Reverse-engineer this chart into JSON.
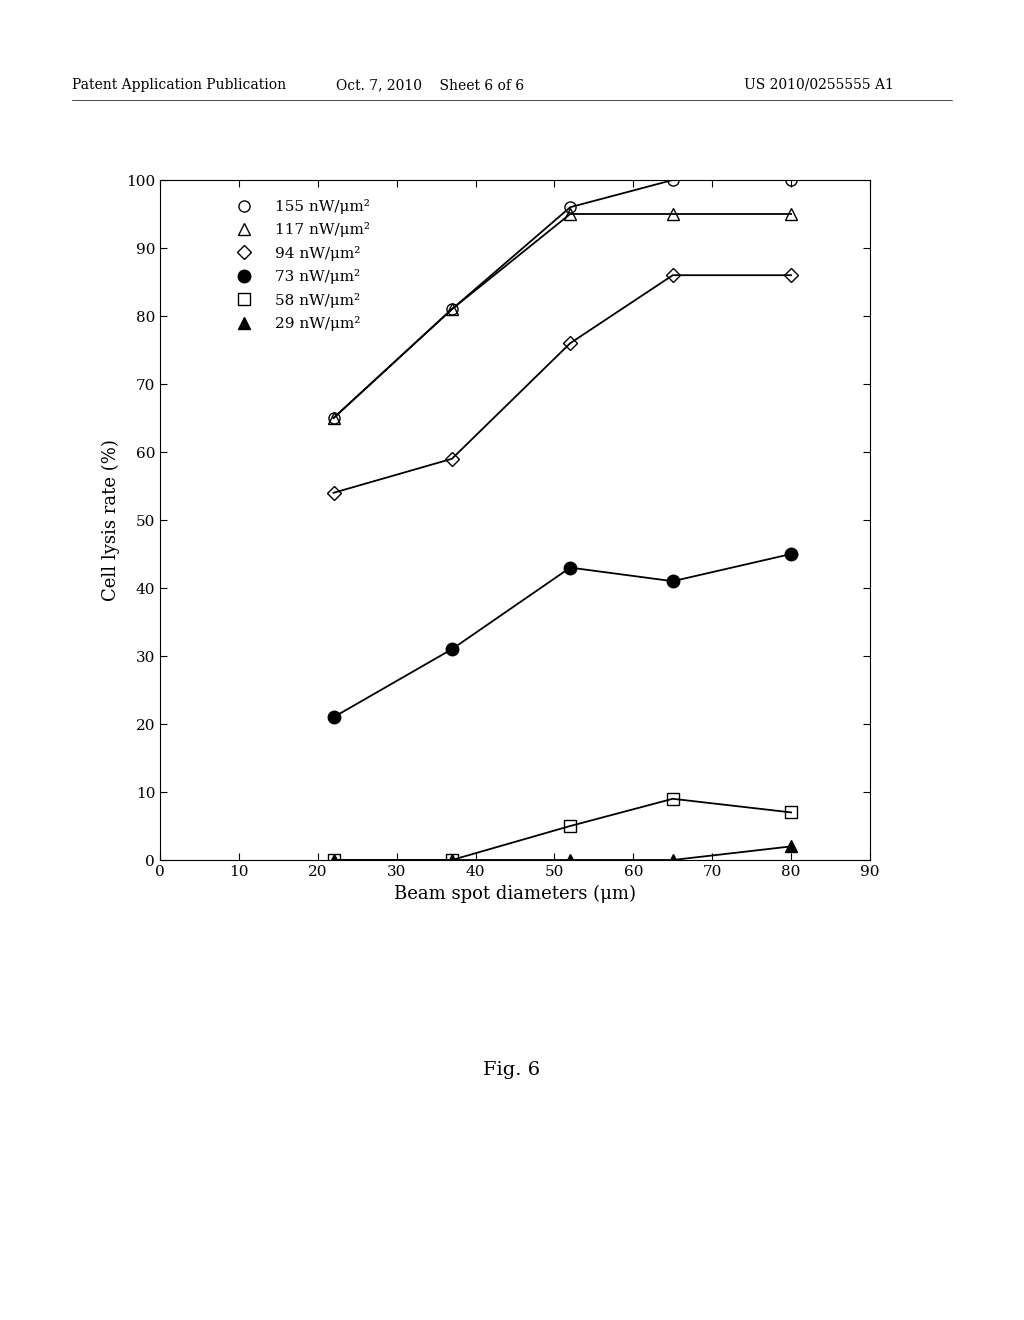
{
  "series": [
    {
      "label": "155 nW/μm²",
      "x": [
        22,
        37,
        52,
        65,
        80
      ],
      "y": [
        65,
        81,
        96,
        100,
        100
      ],
      "marker": "o",
      "fillstyle": "none",
      "color": "black",
      "markersize": 8,
      "linewidth": 1.3
    },
    {
      "label": "117 nW/μm²",
      "x": [
        22,
        37,
        52,
        65,
        80
      ],
      "y": [
        65,
        81,
        95,
        95,
        95
      ],
      "marker": "^",
      "fillstyle": "none",
      "color": "black",
      "markersize": 8,
      "linewidth": 1.3
    },
    {
      "label": "94 nW/μm²",
      "x": [
        22,
        37,
        52,
        65,
        80
      ],
      "y": [
        54,
        59,
        76,
        86,
        86
      ],
      "marker": "D",
      "fillstyle": "none",
      "color": "black",
      "markersize": 7,
      "linewidth": 1.3
    },
    {
      "label": "73 nW/μm²",
      "x": [
        22,
        37,
        52,
        65,
        80
      ],
      "y": [
        21,
        31,
        43,
        41,
        45
      ],
      "marker": "o",
      "fillstyle": "full",
      "color": "black",
      "markersize": 9,
      "linewidth": 1.3
    },
    {
      "label": "58 nW/μm²",
      "x": [
        22,
        37,
        52,
        65,
        80
      ],
      "y": [
        0,
        0,
        5,
        9,
        7
      ],
      "marker": "s",
      "fillstyle": "none",
      "color": "black",
      "markersize": 8,
      "linewidth": 1.3
    },
    {
      "label": "29 nW/μm²",
      "x": [
        22,
        37,
        52,
        65,
        80
      ],
      "y": [
        0,
        0,
        0,
        0,
        2
      ],
      "marker": "^",
      "fillstyle": "full",
      "color": "black",
      "markersize": 8,
      "linewidth": 1.3
    }
  ],
  "xlabel": "Beam spot diameters (μm)",
  "ylabel": "Cell lysis rate (%)",
  "xlim": [
    0,
    90
  ],
  "ylim": [
    0,
    100
  ],
  "xticks": [
    0,
    10,
    20,
    30,
    40,
    50,
    60,
    70,
    80,
    90
  ],
  "yticks": [
    0,
    10,
    20,
    30,
    40,
    50,
    60,
    70,
    80,
    90,
    100
  ],
  "figure_caption": "Fig. 6",
  "header_left": "Patent Application Publication",
  "header_center": "Oct. 7, 2010    Sheet 6 of 6",
  "header_right": "US 2010/0255555 A1",
  "background_color": "#ffffff"
}
